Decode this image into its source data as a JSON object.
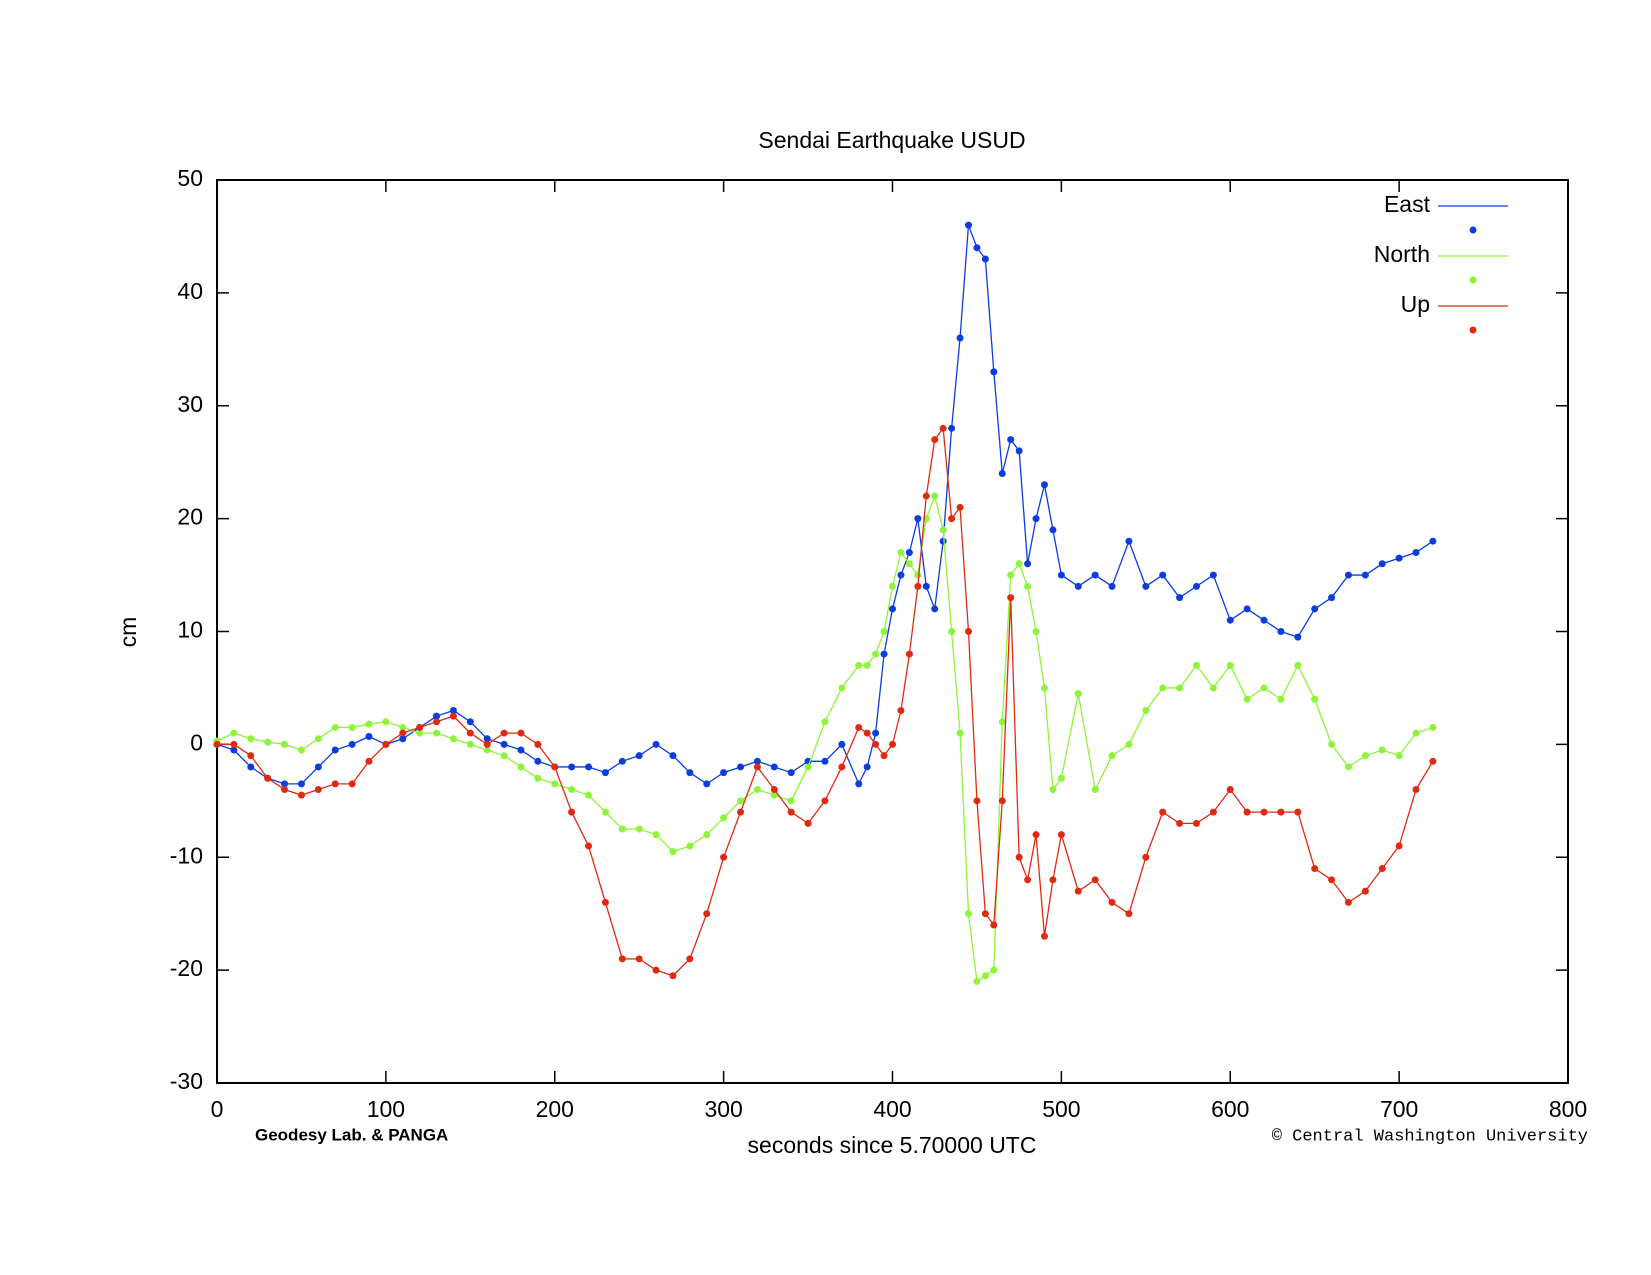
{
  "chart_data": {
    "type": "line",
    "title": "Sendai Earthquake USUD",
    "x_label": "seconds since 5.70000 UTC",
    "y_label": "cm",
    "annotations": [
      "Geodesy Lab. & PANGA",
      "© Central Washington University"
    ],
    "legend": "upper right",
    "markers": true,
    "xlim": [
      0,
      800
    ],
    "xticks": [
      0,
      100,
      200,
      300,
      400,
      500,
      600,
      700,
      800
    ],
    "ylim": [
      -30,
      50
    ],
    "yticks": [
      -30,
      -20,
      -10,
      0,
      10,
      20,
      30,
      40,
      50
    ],
    "x": [
      0,
      10,
      20,
      30,
      40,
      50,
      60,
      70,
      80,
      90,
      100,
      110,
      120,
      130,
      140,
      150,
      160,
      170,
      180,
      190,
      200,
      210,
      220,
      230,
      240,
      250,
      260,
      270,
      280,
      290,
      300,
      310,
      320,
      330,
      340,
      350,
      360,
      370,
      380,
      385,
      390,
      395,
      400,
      405,
      410,
      415,
      420,
      425,
      430,
      435,
      440,
      445,
      450,
      455,
      460,
      465,
      470,
      475,
      480,
      485,
      490,
      495,
      500,
      510,
      520,
      530,
      540,
      550,
      560,
      570,
      580,
      590,
      600,
      610,
      620,
      630,
      640,
      650,
      660,
      670,
      680,
      690,
      700,
      710,
      720
    ],
    "series": [
      {
        "name": "East",
        "color": "#0a3ce0",
        "values": [
          0,
          -0.5,
          -2,
          -3,
          -3.5,
          -3.5,
          -2,
          -0.5,
          0,
          0.7,
          0,
          0.5,
          1.5,
          2.5,
          3,
          2,
          0.5,
          0,
          -0.5,
          -1.5,
          -2,
          -2,
          -2,
          -2.5,
          -1.5,
          -1,
          0,
          -1,
          -2.5,
          -3.5,
          -2.5,
          -2,
          -1.5,
          -2,
          -2.5,
          -1.5,
          -1.5,
          0,
          -3.5,
          -2,
          1,
          8,
          12,
          15,
          17,
          20,
          14,
          12,
          18,
          28,
          36,
          46,
          44,
          43,
          33,
          24,
          27,
          26,
          16,
          20,
          23,
          19,
          15,
          14,
          15,
          14,
          18,
          14,
          15,
          13,
          14,
          15,
          11,
          12,
          11,
          10,
          9.5,
          12,
          13,
          15,
          15,
          16,
          16.5,
          17,
          18
        ]
      },
      {
        "name": "North",
        "color": "#8ef43a",
        "values": [
          0.3,
          1,
          0.5,
          0.2,
          0,
          -0.5,
          0.5,
          1.5,
          1.5,
          1.8,
          2,
          1.5,
          1,
          1,
          0.5,
          0,
          -0.5,
          -1,
          -2,
          -3,
          -3.5,
          -4,
          -4.5,
          -6,
          -7.5,
          -7.5,
          -8,
          -9.5,
          -9,
          -8,
          -6.5,
          -5,
          -4,
          -4.5,
          -5,
          -2,
          2,
          5,
          7,
          7,
          8,
          10,
          14,
          17,
          16,
          15,
          20,
          22,
          19,
          10,
          1,
          -15,
          -21,
          -20.5,
          -20,
          2,
          15,
          16,
          14,
          10,
          5,
          -4,
          -3,
          4.5,
          -4,
          -1,
          0,
          3,
          5,
          5,
          7,
          5,
          7,
          4,
          5,
          4,
          7,
          4,
          0,
          -2,
          -1,
          -0.5,
          -1,
          1,
          1.5
        ]
      },
      {
        "name": "Up",
        "color": "#e02a10",
        "values": [
          0,
          0,
          -1,
          -3,
          -4,
          -4.5,
          -4,
          -3.5,
          -3.5,
          -1.5,
          0,
          1,
          1.5,
          2,
          2.5,
          1,
          0,
          1,
          1,
          0,
          -2,
          -6,
          -9,
          -14,
          -19,
          -19,
          -20,
          -20.5,
          -19,
          -15,
          -10,
          -6,
          -2,
          -4,
          -6,
          -7,
          -5,
          -2,
          1.5,
          1,
          0,
          -1,
          0,
          3,
          8,
          14,
          22,
          27,
          28,
          20,
          21,
          10,
          -5,
          -15,
          -16,
          -5,
          13,
          -10,
          -12,
          -8,
          -17,
          -12,
          -8,
          -13,
          -12,
          -14,
          -15,
          -10,
          -6,
          -7,
          -7,
          -6,
          -4,
          -6,
          -6,
          -6,
          -6,
          -11,
          -12,
          -14,
          -13,
          -11,
          -9,
          -4,
          -1.5
        ]
      }
    ]
  }
}
